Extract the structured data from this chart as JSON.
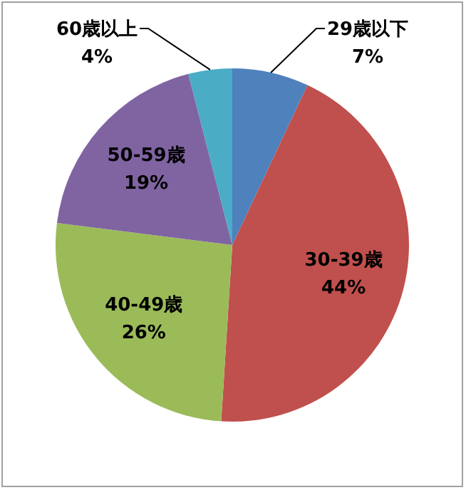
{
  "chart_data": {
    "type": "pie",
    "categories": [
      "29歳以下",
      "30-39歳",
      "40-49歳",
      "50-59歳",
      "60歳以上"
    ],
    "values": [
      7,
      44,
      26,
      19,
      4
    ],
    "colors": [
      "#4f81bd",
      "#c0504d",
      "#9bbb59",
      "#8064a2",
      "#4bacc6"
    ],
    "value_labels": [
      "7%",
      "44%",
      "26%",
      "19%",
      "4%"
    ],
    "legend": false
  }
}
